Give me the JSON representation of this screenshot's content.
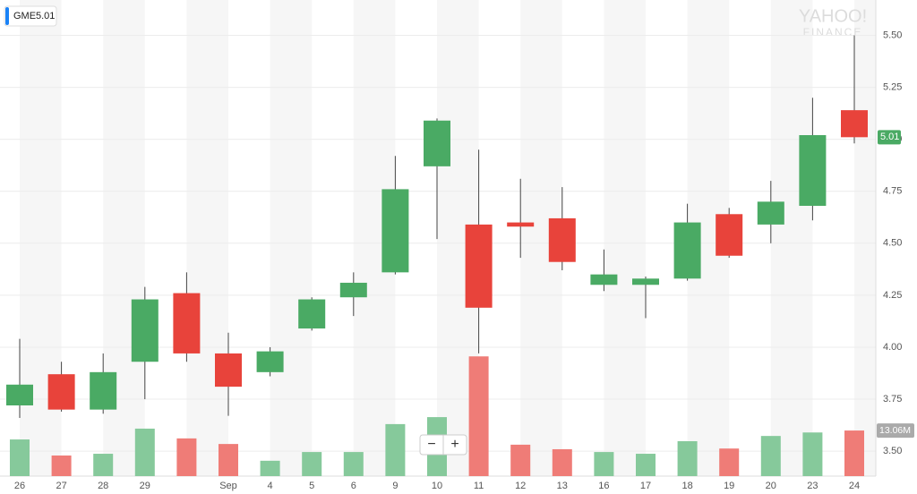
{
  "chart_data": {
    "type": "candlestick",
    "ticker": "GME",
    "last": 5.01,
    "watermark": [
      "YAHOO!",
      "FINANCE"
    ],
    "zoom": [
      "−",
      "+"
    ],
    "categories": [
      "26",
      "27",
      "28",
      "29",
      null,
      "Sep",
      "4",
      "5",
      "6",
      "9",
      "10",
      "11",
      "12",
      "13",
      "16",
      "17",
      "18",
      "19",
      "20",
      "23",
      "24"
    ],
    "open": [
      3.72,
      3.87,
      3.7,
      3.93,
      4.26,
      3.97,
      3.88,
      4.09,
      4.24,
      4.36,
      4.87,
      4.59,
      4.6,
      4.62,
      4.3,
      4.3,
      4.33,
      4.64,
      4.59,
      4.68,
      5.14
    ],
    "high": [
      4.04,
      3.93,
      3.97,
      4.29,
      4.36,
      4.07,
      4.0,
      4.24,
      4.36,
      4.92,
      5.1,
      4.95,
      4.81,
      4.77,
      4.47,
      4.34,
      4.69,
      4.67,
      4.8,
      5.2,
      5.5
    ],
    "low": [
      3.66,
      3.69,
      3.68,
      3.75,
      3.93,
      3.67,
      3.86,
      4.08,
      4.15,
      4.35,
      4.52,
      3.97,
      4.43,
      4.37,
      4.27,
      4.14,
      4.32,
      4.43,
      4.5,
      4.61,
      4.98
    ],
    "close": [
      3.82,
      3.7,
      3.88,
      4.23,
      3.97,
      3.81,
      3.98,
      4.23,
      4.31,
      4.76,
      5.09,
      4.19,
      4.58,
      4.41,
      4.35,
      4.33,
      4.6,
      4.44,
      4.7,
      5.02,
      5.01
    ],
    "up_color": "#4aaa64",
    "down_color": "#e8433b",
    "ylim": [
      3.38,
      5.67
    ],
    "yticks": [
      {
        "value": 3.5,
        "label": "3.50"
      },
      3.75,
      {
        "value": 4.0,
        "label": "4.00"
      },
      4.25,
      {
        "value": 4.5,
        "label": "4.50"
      },
      4.75,
      {
        "value": 5.0,
        "label": "5.00"
      },
      5.25,
      {
        "value": 5.5,
        "label": "5.50"
      }
    ],
    "grid": true,
    "volume": {
      "values": [
        10.5,
        5.9,
        6.4,
        13.6,
        10.8,
        9.2,
        4.4,
        6.9,
        6.9,
        14.9,
        16.9,
        34.3,
        9.0,
        7.7,
        6.9,
        6.4,
        10.0,
        7.9,
        11.5,
        12.5,
        13.06
      ],
      "up_color": "#86c99b",
      "down_color": "#ef7c77",
      "ylim": [
        0,
        100
      ],
      "last_label": "13.06M"
    }
  }
}
